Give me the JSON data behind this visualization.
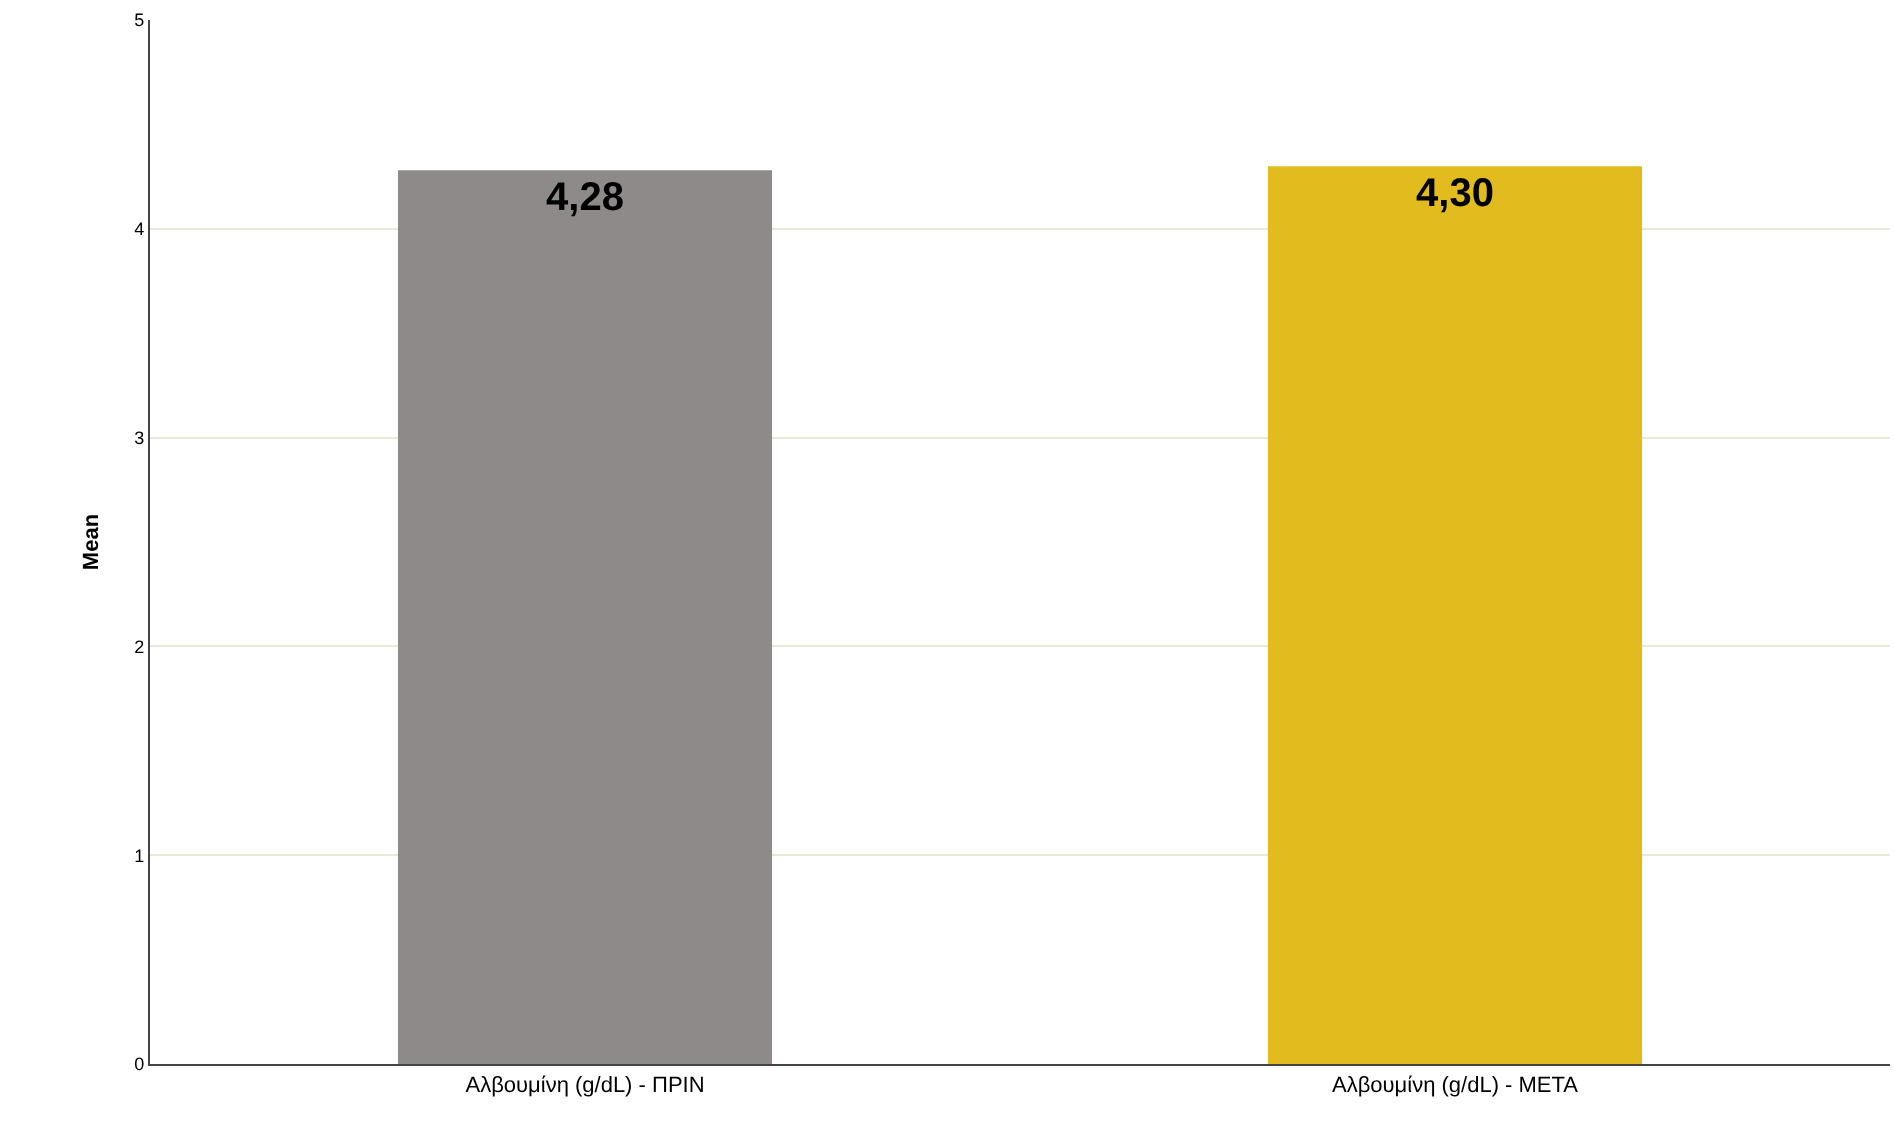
{
  "chart_data": {
    "type": "bar",
    "ylabel": "Mean",
    "categories": [
      "Αλβουμίνη (g/dL) - ΠΡΙΝ",
      "Αλβουμίνη (g/dL) - ΜΕΤΑ"
    ],
    "values": [
      4.28,
      4.3
    ],
    "colors": [
      "#8e8a8a",
      "#e2bb1e"
    ],
    "value_labels": [
      "4,28",
      "4,30"
    ],
    "ylim": [
      0,
      5
    ],
    "yticks": [
      0,
      1,
      2,
      3,
      4,
      5
    ],
    "grid": "y",
    "legend": false
  }
}
